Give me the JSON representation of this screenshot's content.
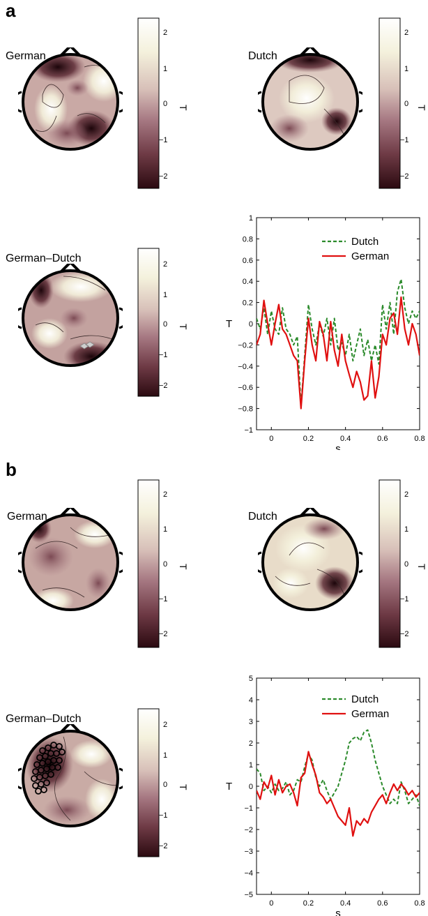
{
  "panel_a": {
    "label": "a",
    "topo_german": "German",
    "topo_dutch": "Dutch",
    "topo_diff": "German–Dutch",
    "cbar_label": "T",
    "cbar_ticks": [
      "2",
      "1",
      "0",
      "−1",
      "−2"
    ]
  },
  "panel_b": {
    "label": "b",
    "topo_german": "German",
    "topo_dutch": "Dutch",
    "topo_diff": "German–Dutch",
    "cbar_label": "T",
    "cbar_ticks": [
      "2",
      "1",
      "0",
      "−1",
      "−2"
    ]
  },
  "colors": {
    "dutch": "#2a8a2a",
    "german": "#e01010",
    "cmap": [
      "#2b0a10",
      "#6e3a45",
      "#a67882",
      "#d7bfb8",
      "#f4f1dc",
      "#ffffff"
    ]
  },
  "chart_data": [
    {
      "type": "line",
      "panel": "a",
      "xlabel": "s",
      "ylabel": "T",
      "xlim": [
        -0.08,
        0.8
      ],
      "ylim": [
        -1,
        1
      ],
      "xticks": [
        "0",
        "0.2",
        "0.4",
        "0.6",
        "0.8"
      ],
      "yticks": [
        "1",
        "0.8",
        "0.6",
        "0.4",
        "0.2",
        "0",
        "−0.2",
        "−0.4",
        "−0.6",
        "−0.8",
        "−1"
      ],
      "xtick_values": [
        0,
        0.2,
        0.4,
        0.6,
        0.8
      ],
      "ytick_values": [
        1,
        0.8,
        0.6,
        0.4,
        0.2,
        0,
        -0.2,
        -0.4,
        -0.6,
        -0.8,
        -1
      ],
      "legend_position": "top-right",
      "series": [
        {
          "name": "Dutch",
          "style": "dashed",
          "x": [
            -0.08,
            -0.06,
            -0.04,
            -0.02,
            0.0,
            0.02,
            0.04,
            0.06,
            0.08,
            0.1,
            0.12,
            0.14,
            0.16,
            0.18,
            0.2,
            0.22,
            0.24,
            0.26,
            0.28,
            0.3,
            0.32,
            0.34,
            0.36,
            0.38,
            0.4,
            0.42,
            0.44,
            0.46,
            0.48,
            0.5,
            0.52,
            0.54,
            0.56,
            0.58,
            0.6,
            0.62,
            0.64,
            0.66,
            0.68,
            0.7,
            0.72,
            0.74,
            0.76,
            0.78,
            0.8
          ],
          "y": [
            0.05,
            -0.05,
            0.15,
            -0.1,
            0.12,
            -0.05,
            -0.1,
            0.15,
            -0.05,
            -0.1,
            -0.2,
            -0.12,
            -0.78,
            -0.3,
            0.18,
            -0.05,
            -0.2,
            0.0,
            -0.12,
            0.05,
            -0.2,
            0.05,
            -0.25,
            -0.18,
            -0.3,
            -0.1,
            -0.35,
            -0.2,
            -0.05,
            -0.3,
            -0.15,
            -0.35,
            -0.2,
            -0.38,
            0.18,
            -0.05,
            0.2,
            -0.1,
            0.3,
            0.42,
            0.15,
            0.0,
            0.12,
            0.05,
            0.12
          ]
        },
        {
          "name": "German",
          "style": "solid",
          "x": [
            -0.08,
            -0.06,
            -0.04,
            -0.02,
            0.0,
            0.02,
            0.04,
            0.06,
            0.08,
            0.1,
            0.12,
            0.14,
            0.16,
            0.18,
            0.2,
            0.22,
            0.24,
            0.26,
            0.28,
            0.3,
            0.32,
            0.34,
            0.36,
            0.38,
            0.4,
            0.42,
            0.44,
            0.46,
            0.48,
            0.5,
            0.52,
            0.54,
            0.56,
            0.58,
            0.6,
            0.62,
            0.64,
            0.66,
            0.68,
            0.7,
            0.72,
            0.74,
            0.76,
            0.78,
            0.8
          ],
          "y": [
            -0.2,
            -0.1,
            0.22,
            0.0,
            -0.2,
            0.0,
            0.18,
            -0.05,
            -0.1,
            -0.2,
            -0.3,
            -0.35,
            -0.8,
            -0.35,
            0.05,
            -0.2,
            -0.35,
            0.02,
            -0.1,
            -0.35,
            0.02,
            -0.25,
            -0.4,
            -0.1,
            -0.35,
            -0.48,
            -0.6,
            -0.45,
            -0.55,
            -0.72,
            -0.68,
            -0.35,
            -0.7,
            -0.5,
            -0.1,
            -0.2,
            0.05,
            0.1,
            -0.1,
            0.25,
            -0.05,
            -0.2,
            0.0,
            -0.1,
            -0.3
          ]
        }
      ]
    },
    {
      "type": "line",
      "panel": "b",
      "xlabel": "s",
      "ylabel": "T",
      "xlim": [
        -0.08,
        0.8
      ],
      "ylim": [
        -5,
        5
      ],
      "xticks": [
        "0",
        "0.2",
        "0.4",
        "0.6",
        "0.8"
      ],
      "yticks": [
        "5",
        "4",
        "3",
        "2",
        "1",
        "0",
        "−1",
        "−2",
        "−3",
        "−4",
        "−5"
      ],
      "xtick_values": [
        0,
        0.2,
        0.4,
        0.6,
        0.8
      ],
      "ytick_values": [
        5,
        4,
        3,
        2,
        1,
        0,
        -1,
        -2,
        -3,
        -4,
        -5
      ],
      "legend_position": "top-right",
      "series": [
        {
          "name": "Dutch",
          "style": "dashed",
          "x": [
            -0.08,
            -0.06,
            -0.04,
            -0.02,
            0.0,
            0.02,
            0.04,
            0.06,
            0.08,
            0.1,
            0.12,
            0.14,
            0.16,
            0.18,
            0.2,
            0.22,
            0.24,
            0.26,
            0.28,
            0.3,
            0.32,
            0.34,
            0.36,
            0.38,
            0.4,
            0.42,
            0.44,
            0.46,
            0.48,
            0.5,
            0.52,
            0.54,
            0.56,
            0.58,
            0.6,
            0.62,
            0.64,
            0.66,
            0.68,
            0.7,
            0.72,
            0.74,
            0.76,
            0.78,
            0.8
          ],
          "y": [
            0.8,
            0.6,
            -0.2,
            0.0,
            -0.3,
            0.1,
            -0.2,
            -0.1,
            0.2,
            -0.4,
            -0.2,
            0.3,
            0.2,
            0.9,
            1.5,
            1.2,
            0.4,
            0.0,
            0.3,
            -0.2,
            -0.6,
            -0.3,
            0.0,
            0.6,
            1.2,
            2.0,
            2.2,
            2.3,
            2.1,
            2.5,
            2.6,
            2.0,
            1.2,
            0.6,
            0.0,
            -0.4,
            -0.8,
            -0.6,
            -0.8,
            0.2,
            -0.2,
            -0.8,
            -0.6,
            -0.4,
            -0.9
          ]
        },
        {
          "name": "German",
          "style": "solid",
          "x": [
            -0.08,
            -0.06,
            -0.04,
            -0.02,
            0.0,
            0.02,
            0.04,
            0.06,
            0.08,
            0.1,
            0.12,
            0.14,
            0.16,
            0.18,
            0.2,
            0.22,
            0.24,
            0.26,
            0.28,
            0.3,
            0.32,
            0.34,
            0.36,
            0.38,
            0.4,
            0.42,
            0.44,
            0.46,
            0.48,
            0.5,
            0.52,
            0.54,
            0.56,
            0.58,
            0.6,
            0.62,
            0.64,
            0.66,
            0.68,
            0.7,
            0.72,
            0.74,
            0.76,
            0.78,
            0.8
          ],
          "y": [
            -0.2,
            -0.6,
            0.2,
            -0.1,
            0.5,
            -0.4,
            0.3,
            -0.3,
            0.0,
            0.1,
            -0.3,
            -0.9,
            0.4,
            0.6,
            1.6,
            1.0,
            0.5,
            -0.3,
            -0.5,
            -0.8,
            -0.6,
            -1.0,
            -1.4,
            -1.6,
            -1.8,
            -1.0,
            -2.3,
            -1.6,
            -1.8,
            -1.5,
            -1.7,
            -1.2,
            -0.9,
            -0.6,
            -0.4,
            -0.8,
            -0.3,
            0.1,
            -0.2,
            0.1,
            -0.1,
            -0.4,
            -0.2,
            -0.5,
            -0.3
          ]
        }
      ]
    }
  ]
}
